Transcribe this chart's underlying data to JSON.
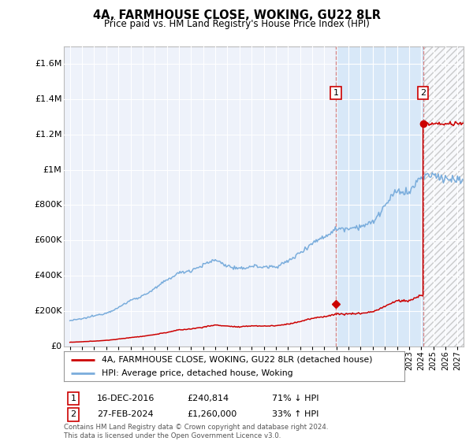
{
  "title": "4A, FARMHOUSE CLOSE, WOKING, GU22 8LR",
  "subtitle": "Price paid vs. HM Land Registry's House Price Index (HPI)",
  "legend_line1": "4A, FARMHOUSE CLOSE, WOKING, GU22 8LR (detached house)",
  "legend_line2": "HPI: Average price, detached house, Woking",
  "footnote": "Contains HM Land Registry data © Crown copyright and database right 2024.\nThis data is licensed under the Open Government Licence v3.0.",
  "sale1_label": "1",
  "sale1_date": "16-DEC-2016",
  "sale1_price": "£240,814",
  "sale1_hpi": "71% ↓ HPI",
  "sale2_label": "2",
  "sale2_date": "27-FEB-2024",
  "sale2_price": "£1,260,000",
  "sale2_hpi": "33% ↑ HPI",
  "hpi_color": "#7aaddc",
  "price_color": "#cc0000",
  "marker_color": "#cc0000",
  "bg_color": "#eef2fa",
  "highlight_color": "#d8e8f8",
  "grid_color": "#ffffff",
  "ylim": [
    0,
    1700000
  ],
  "yticks": [
    0,
    200000,
    400000,
    600000,
    800000,
    1000000,
    1200000,
    1400000,
    1600000
  ],
  "ytick_labels": [
    "£0",
    "£200K",
    "£400K",
    "£600K",
    "£800K",
    "£1M",
    "£1.2M",
    "£1.4M",
    "£1.6M"
  ],
  "sale1_x": 2016.96,
  "sale1_y": 240814,
  "sale2_x": 2024.15,
  "sale2_y": 1260000,
  "vline1_x": 2016.96,
  "vline2_x": 2024.15,
  "xmin": 1994.5,
  "xmax": 2027.5,
  "hpi_years": [
    1995,
    1996,
    1997,
    1998,
    1999,
    2000,
    2001,
    2002,
    2003,
    2004,
    2005,
    2006,
    2007,
    2008,
    2009,
    2010,
    2011,
    2012,
    2013,
    2014,
    2015,
    2016,
    2017,
    2018,
    2019,
    2020,
    2021,
    2022,
    2023,
    2024,
    2025,
    2026,
    2027
  ],
  "hpi_values": [
    145000,
    155000,
    172000,
    188000,
    218000,
    260000,
    285000,
    325000,
    375000,
    415000,
    430000,
    460000,
    490000,
    455000,
    435000,
    455000,
    448000,
    452000,
    480000,
    530000,
    585000,
    620000,
    665000,
    670000,
    680000,
    700000,
    795000,
    880000,
    870000,
    960000,
    970000,
    950000,
    940000
  ],
  "red_years": [
    1995,
    1996,
    1997,
    1998,
    1999,
    2000,
    2001,
    2002,
    2003,
    2004,
    2005,
    2006,
    2007,
    2008,
    2009,
    2010,
    2011,
    2012,
    2013,
    2014,
    2015,
    2016,
    2017,
    2018,
    2019,
    2020,
    2021,
    2022,
    2023,
    2024
  ],
  "red_values": [
    22000,
    25000,
    29000,
    33000,
    40000,
    49000,
    56000,
    66000,
    78000,
    92000,
    98000,
    108000,
    120000,
    114000,
    108000,
    116000,
    114000,
    116000,
    125000,
    140000,
    157000,
    168000,
    182000,
    183000,
    186000,
    195000,
    225000,
    258000,
    256000,
    290000
  ]
}
